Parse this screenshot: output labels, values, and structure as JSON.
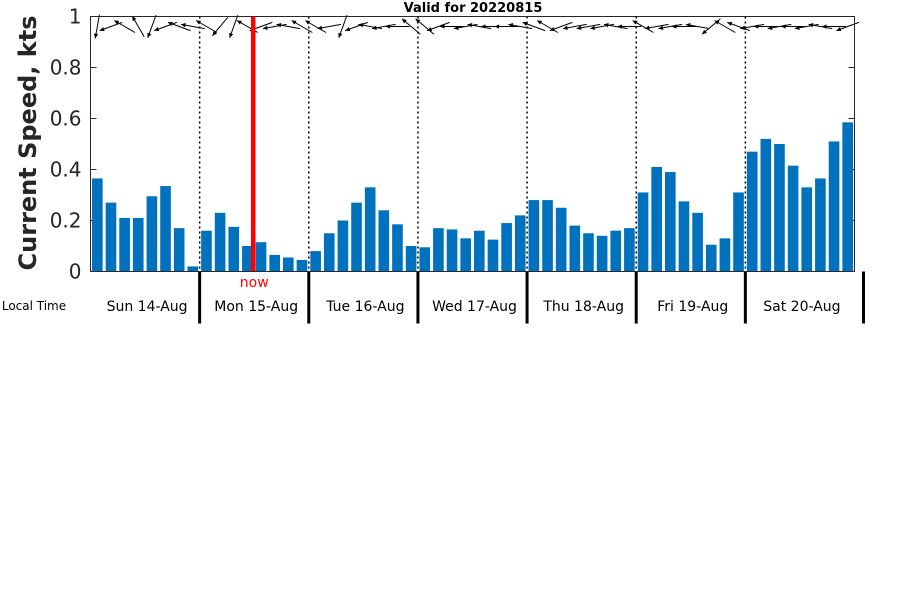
{
  "chart_data": {
    "type": "bar",
    "title": "Valid for 20220815",
    "ylabel": "Current Speed, kts",
    "xlabel": "Local Time",
    "ylim": [
      0,
      1
    ],
    "yticks": [
      "0",
      "0.2",
      "0.4",
      "0.6",
      "0.8",
      "1"
    ],
    "ytick_values": [
      0,
      0.2,
      0.4,
      0.6,
      0.8,
      1
    ],
    "days": [
      "Sun 14-Aug",
      "Mon 15-Aug",
      "Tue 16-Aug",
      "Wed 17-Aug",
      "Thu 18-Aug",
      "Fri 19-Aug",
      "Sat 20-Aug"
    ],
    "bar_color": "#0072bd",
    "values": [
      0.365,
      0.27,
      0.21,
      0.21,
      0.295,
      0.335,
      0.17,
      0.02,
      0.16,
      0.23,
      0.175,
      0.1,
      0.115,
      0.065,
      0.055,
      0.045,
      0.08,
      0.15,
      0.2,
      0.27,
      0.33,
      0.24,
      0.185,
      0.1,
      0.095,
      0.17,
      0.165,
      0.13,
      0.16,
      0.125,
      0.19,
      0.22,
      0.28,
      0.28,
      0.25,
      0.18,
      0.15,
      0.14,
      0.16,
      0.17,
      0.31,
      0.41,
      0.39,
      0.275,
      0.23,
      0.105,
      0.13,
      0.31,
      0.47,
      0.52,
      0.5,
      0.415,
      0.33,
      0.365,
      0.51,
      0.585
    ],
    "day_boundaries": [
      8,
      16,
      24,
      32,
      40,
      48
    ],
    "now": {
      "label": "now",
      "color": "#ff0000",
      "position": 12
    },
    "direction_deg": [
      190,
      250,
      300,
      330,
      200,
      250,
      290,
      280,
      300,
      220,
      200,
      300,
      250,
      260,
      280,
      300,
      300,
      260,
      200,
      250,
      280,
      260,
      270,
      310,
      310,
      250,
      270,
      260,
      280,
      270,
      270,
      280,
      290,
      300,
      250,
      260,
      260,
      260,
      280,
      270,
      300,
      260,
      260,
      270,
      280,
      230,
      300,
      290,
      260,
      270,
      260,
      270,
      260,
      280,
      270,
      250
    ]
  }
}
